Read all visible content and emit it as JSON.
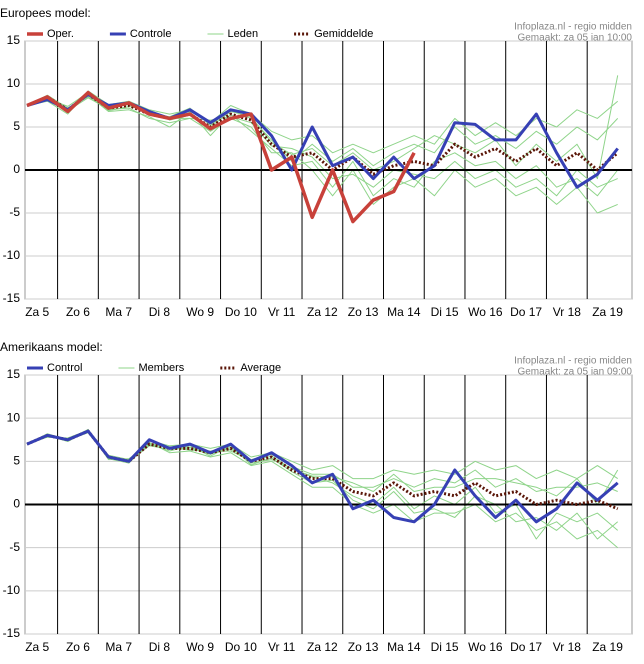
{
  "chart_data": [
    {
      "type": "line",
      "title": "Europees model:",
      "source": "Infoplaza.nl - regio midden",
      "made": "Gemaakt: za 05 jan 10:00",
      "x": [
        0.25,
        0.75,
        1.25,
        1.75,
        2.25,
        2.75,
        3.25,
        3.75,
        4.25,
        4.75,
        5.25,
        5.75,
        6.25,
        6.75,
        7.25,
        7.75,
        8.25,
        8.75,
        9.25,
        9.75,
        10.25,
        10.75,
        11.25,
        11.75,
        12.25,
        12.75,
        13.25,
        13.75,
        14.25,
        14.75
      ],
      "xlim": [
        0.2,
        15.1
      ],
      "xticks": [
        {
          "value": 0.5,
          "label": "Za 5"
        },
        {
          "value": 1.5,
          "label": "Zo 6"
        },
        {
          "value": 2.5,
          "label": "Ma 7"
        },
        {
          "value": 3.5,
          "label": "Di 8"
        },
        {
          "value": 4.5,
          "label": "Wo 9"
        },
        {
          "value": 5.5,
          "label": "Do 10"
        },
        {
          "value": 6.5,
          "label": "Vr 11"
        },
        {
          "value": 7.5,
          "label": "Za 12"
        },
        {
          "value": 8.5,
          "label": "Zo 13"
        },
        {
          "value": 9.5,
          "label": "Ma 14"
        },
        {
          "value": 10.5,
          "label": "Di 15"
        },
        {
          "value": 11.5,
          "label": "Wo 16"
        },
        {
          "value": 12.5,
          "label": "Do 17"
        },
        {
          "value": 13.5,
          "label": "Vr 18"
        },
        {
          "value": 14.5,
          "label": "Za 19"
        }
      ],
      "xgrid": [
        1,
        2,
        3,
        4,
        5,
        6,
        7,
        8,
        9,
        10,
        11,
        12,
        13,
        14
      ],
      "ylim": [
        -15,
        15
      ],
      "yticks": [
        15,
        10,
        5,
        0,
        -5,
        -10,
        -15
      ],
      "grid": true,
      "series": [
        {
          "name": "Oper.",
          "color": "#c8413a",
          "width": 3.5,
          "values": [
            7.5,
            8.5,
            6.8,
            9,
            7.2,
            7.8,
            6.5,
            6,
            6.5,
            4.8,
            6,
            6.5,
            0,
            1.5,
            -5.5,
            0,
            -6,
            -3.5,
            -2.5,
            2,
            null,
            null,
            null,
            null,
            null,
            null,
            null,
            null,
            null,
            null
          ]
        },
        {
          "name": "Controle",
          "color": "#3640b4",
          "width": 3,
          "values": [
            7.5,
            8.2,
            7,
            8.8,
            7.5,
            7.8,
            6.8,
            6,
            7,
            5.5,
            7,
            6.5,
            4,
            0,
            5,
            0.5,
            1.5,
            -1,
            1.5,
            -1,
            0.5,
            5.5,
            5.3,
            3.5,
            3.5,
            6.5,
            2,
            -2,
            -0.5,
            2.5
          ]
        },
        {
          "name": "Leden",
          "color": "#8fd48a",
          "width": 1,
          "members": [
            [
              7.5,
              8.7,
              7.2,
              8.5,
              7,
              7.2,
              6,
              5.5,
              6,
              4.5,
              6,
              5,
              2,
              2,
              0,
              -3,
              0,
              -4,
              -2,
              -1,
              -3,
              0,
              -2,
              -1,
              -3,
              -2,
              -4,
              -2,
              -5,
              -4
            ],
            [
              7.5,
              8,
              6.5,
              9.2,
              7.6,
              8,
              7,
              6.5,
              7,
              5.5,
              7.5,
              6.5,
              4.5,
              3.5,
              4,
              2,
              3,
              2,
              3,
              4,
              3,
              6,
              4,
              5.5,
              4,
              6,
              5,
              7,
              6,
              8
            ],
            [
              7.5,
              8.5,
              7,
              8.7,
              6.8,
              7,
              6.2,
              5,
              6.8,
              4,
              6.5,
              4.5,
              2.5,
              0.5,
              1,
              -2,
              1,
              -3,
              -1,
              -2,
              1,
              2,
              0.5,
              1,
              -1,
              0.5,
              -2,
              -1,
              -3,
              0
            ],
            [
              7.5,
              8.3,
              7.4,
              9,
              7.3,
              7.6,
              6.6,
              6.2,
              7.2,
              5.2,
              7,
              6,
              3.5,
              1,
              3,
              1,
              2.5,
              0.5,
              2,
              3,
              2,
              5,
              3,
              4,
              2.5,
              4.5,
              3,
              5,
              3.5,
              6
            ],
            [
              7.5,
              8.6,
              6.9,
              8.4,
              7.1,
              7.9,
              6.4,
              6,
              6,
              5.8,
              6.2,
              5.5,
              2.8,
              2.5,
              1.5,
              -1,
              -0.5,
              -2,
              0,
              -0.5,
              -1,
              1,
              -1,
              0,
              -2,
              -1,
              -3,
              0,
              -2,
              -1
            ],
            [
              7.5,
              8.4,
              7.1,
              8.9,
              6.9,
              7.4,
              6.9,
              5.8,
              6.4,
              5,
              6.8,
              6.2,
              3.2,
              1.8,
              2.5,
              0.5,
              2,
              0,
              1,
              2.5,
              4,
              3,
              2,
              3.5,
              0.5,
              3,
              1,
              3,
              -1,
              11
            ]
          ]
        },
        {
          "name": "Gemiddelde",
          "color": "#5a1608",
          "width": 3,
          "dashed": true,
          "values": [
            7.5,
            8.5,
            7,
            8.8,
            7.2,
            7.5,
            6.5,
            6,
            6.5,
            5,
            6.5,
            5.8,
            3,
            1.5,
            2,
            0,
            1.5,
            -0.5,
            0.5,
            1,
            0.5,
            3,
            1.5,
            2.5,
            1,
            2.5,
            0.5,
            2,
            0,
            2
          ]
        }
      ]
    },
    {
      "type": "line",
      "title": "Amerikaans model:",
      "source": "Infoplaza.nl - regio midden",
      "made": "Gemaakt: za 05 jan 09:00",
      "x": [
        0.25,
        0.75,
        1.25,
        1.75,
        2.25,
        2.75,
        3.25,
        3.75,
        4.25,
        4.75,
        5.25,
        5.75,
        6.25,
        6.75,
        7.25,
        7.75,
        8.25,
        8.75,
        9.25,
        9.75,
        10.25,
        10.75,
        11.25,
        11.75,
        12.25,
        12.75,
        13.25,
        13.75,
        14.25,
        14.75
      ],
      "xlim": [
        0.2,
        15.1
      ],
      "xticks": [
        {
          "value": 0.5,
          "label": "Za 5"
        },
        {
          "value": 1.5,
          "label": "Zo 6"
        },
        {
          "value": 2.5,
          "label": "Ma 7"
        },
        {
          "value": 3.5,
          "label": "Di 8"
        },
        {
          "value": 4.5,
          "label": "Wo 9"
        },
        {
          "value": 5.5,
          "label": "Do 10"
        },
        {
          "value": 6.5,
          "label": "Vr 11"
        },
        {
          "value": 7.5,
          "label": "Za 12"
        },
        {
          "value": 8.5,
          "label": "Zo 13"
        },
        {
          "value": 9.5,
          "label": "Ma 14"
        },
        {
          "value": 10.5,
          "label": "Di 15"
        },
        {
          "value": 11.5,
          "label": "Wo 16"
        },
        {
          "value": 12.5,
          "label": "Do 17"
        },
        {
          "value": 13.5,
          "label": "Vr 18"
        },
        {
          "value": 14.5,
          "label": "Za 19"
        }
      ],
      "xgrid": [
        1,
        2,
        3,
        4,
        5,
        6,
        7,
        8,
        9,
        10,
        11,
        12,
        13,
        14
      ],
      "ylim": [
        -15,
        15
      ],
      "yticks": [
        15,
        10,
        5,
        0,
        -5,
        -10,
        -15
      ],
      "grid": true,
      "series": [
        {
          "name": "Control",
          "color": "#3640b4",
          "width": 3,
          "values": [
            7,
            8,
            7.5,
            8.5,
            5.5,
            5,
            7.5,
            6.5,
            7,
            6,
            7,
            5,
            6,
            4.5,
            2.5,
            3.5,
            -0.5,
            0.5,
            -1.5,
            -2,
            0,
            4,
            1,
            -1.5,
            0.5,
            -2,
            -0.5,
            2.5,
            0.5,
            2.5
          ]
        },
        {
          "name": "Members",
          "color": "#8fd48a",
          "width": 1,
          "members": [
            [
              7,
              8,
              7.3,
              8.6,
              5.3,
              4.8,
              7.2,
              6,
              6.2,
              5.5,
              6,
              4.5,
              5,
              3.5,
              2,
              2,
              0,
              -1,
              0,
              -2,
              -1,
              -1,
              0,
              -2,
              -1,
              -3,
              -2,
              -4,
              -3,
              -5
            ],
            [
              7,
              8.1,
              7.6,
              8.4,
              5.7,
              5.2,
              7.4,
              6.8,
              7,
              6.5,
              7,
              5.5,
              6,
              5,
              4,
              4.5,
              3,
              3,
              4,
              3.5,
              4,
              3.5,
              5,
              4,
              4.5,
              3,
              4,
              3,
              4.5,
              3
            ],
            [
              7,
              7.9,
              7.4,
              8.5,
              5.6,
              5,
              6.8,
              6.4,
              6.6,
              5.8,
              6.6,
              4.8,
              5.2,
              4.2,
              3.2,
              2.5,
              1,
              0,
              2,
              -0.5,
              1,
              0,
              2,
              -1,
              0,
              -4,
              -1,
              -2,
              -1,
              -3
            ],
            [
              7,
              8,
              7.5,
              8.7,
              5.4,
              5.1,
              7.1,
              6.6,
              6.3,
              6.2,
              6.4,
              5.2,
              5.8,
              4.4,
              3.5,
              3.5,
              2,
              2,
              3,
              2,
              3,
              2.5,
              4,
              2,
              3,
              1.5,
              2,
              2,
              2.5,
              1.5
            ],
            [
              7,
              8.2,
              7.5,
              8.3,
              5.5,
              4.9,
              7,
              6.2,
              6.8,
              5.6,
              6.8,
              4.6,
              5.4,
              3.8,
              2.5,
              2.8,
              0.5,
              -0.5,
              1.5,
              -1,
              -0.5,
              -1.5,
              1,
              0,
              -2,
              -1.5,
              -3,
              -1,
              -4,
              -2
            ],
            [
              7,
              7.8,
              7.7,
              8.6,
              5.2,
              5.3,
              6.9,
              6.7,
              6.4,
              6.1,
              6.2,
              5.1,
              5.6,
              4.1,
              3.3,
              3.2,
              2.5,
              1.5,
              3.5,
              1.5,
              2,
              2,
              3,
              3,
              2.5,
              2,
              1,
              3,
              0,
              4
            ]
          ]
        },
        {
          "name": "Average",
          "color": "#5a1608",
          "width": 3,
          "dashed": true,
          "values": [
            7,
            8,
            7.5,
            8.5,
            5.5,
            5,
            7,
            6.5,
            6.5,
            6,
            6.5,
            5,
            5.5,
            4,
            3,
            3,
            1.5,
            1,
            2.5,
            1,
            1.5,
            1,
            2.5,
            1,
            1.5,
            0,
            0.5,
            0,
            0.5,
            -0.5
          ]
        }
      ]
    }
  ]
}
